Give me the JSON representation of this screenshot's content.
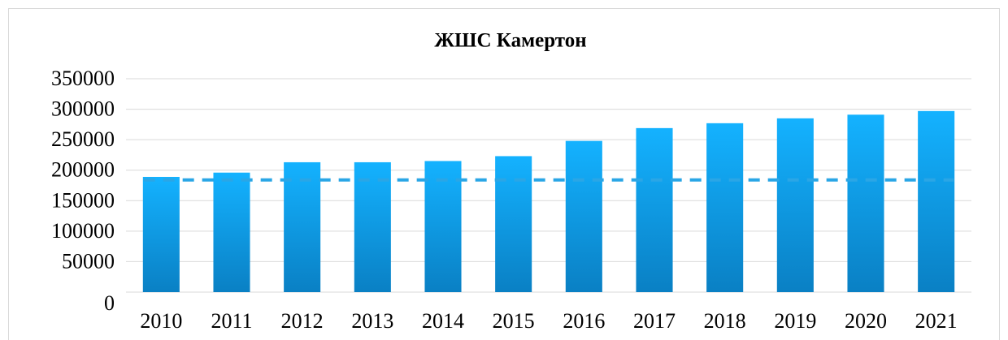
{
  "chart_data": {
    "type": "bar",
    "title": "ЖШС Камертон",
    "categories": [
      "2010",
      "2011",
      "2012",
      "2013",
      "2014",
      "2015",
      "2016",
      "2017",
      "2018",
      "2019",
      "2020",
      "2021"
    ],
    "values": [
      189000,
      196000,
      213000,
      213000,
      215000,
      223000,
      248000,
      269000,
      277000,
      285000,
      291000,
      297000
    ],
    "color": "#14aefc",
    "reference_line": {
      "value": 184000,
      "color": "#2aa6e6"
    },
    "ylim": [
      0,
      350000
    ],
    "yticks": [
      0,
      50000,
      100000,
      150000,
      200000,
      250000,
      300000,
      350000
    ],
    "grid": true
  }
}
